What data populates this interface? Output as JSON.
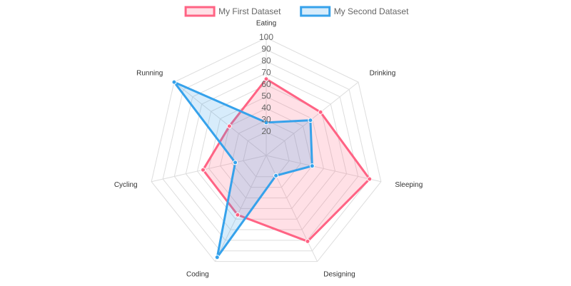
{
  "chart_data": {
    "type": "radar",
    "categories": [
      "Eating",
      "Drinking",
      "Sleeping",
      "Designing",
      "Coding",
      "Cycling",
      "Running"
    ],
    "series": [
      {
        "name": "My First Dataset",
        "color": "#ff6384",
        "values": [
          65,
          59,
          90,
          81,
          56,
          55,
          40
        ]
      },
      {
        "name": "My Second Dataset",
        "color": "#36a2eb",
        "values": [
          28,
          48,
          40,
          19,
          96,
          27,
          100
        ]
      }
    ],
    "ylim": [
      0,
      100
    ],
    "yticks": [
      20,
      30,
      40,
      50,
      60,
      70,
      80,
      90,
      100
    ],
    "grid": true,
    "legend": "top"
  }
}
